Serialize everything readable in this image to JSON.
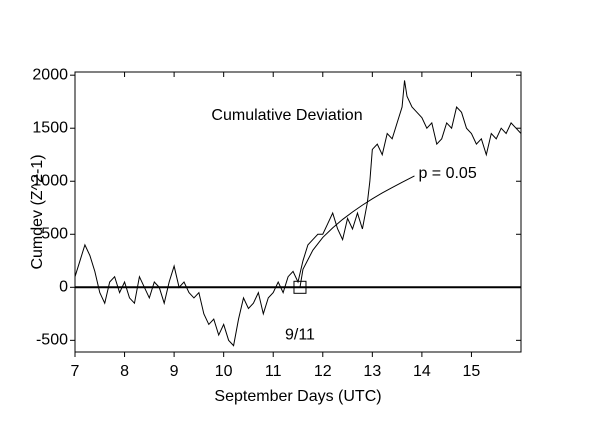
{
  "chart_data": {
    "type": "line",
    "title": "Cumulative Deviation",
    "x_label": "September Days (UTC)",
    "y_label": "Cumdev (Z^2-1)",
    "color": "#000000",
    "x": [
      7.0,
      7.1,
      7.2,
      7.3,
      7.4,
      7.5,
      7.6,
      7.7,
      7.8,
      7.9,
      8.0,
      8.1,
      8.2,
      8.3,
      8.4,
      8.5,
      8.6,
      8.7,
      8.8,
      8.9,
      9.0,
      9.1,
      9.2,
      9.3,
      9.4,
      9.5,
      9.6,
      9.7,
      9.8,
      9.9,
      10.0,
      10.1,
      10.2,
      10.3,
      10.4,
      10.5,
      10.6,
      10.7,
      10.8,
      10.9,
      11.0,
      11.1,
      11.2,
      11.3,
      11.4,
      11.5,
      11.6,
      11.7,
      11.8,
      11.9,
      12.0,
      12.1,
      12.2,
      12.3,
      12.4,
      12.5,
      12.6,
      12.7,
      12.8,
      12.9,
      12.95,
      13.0,
      13.1,
      13.2,
      13.3,
      13.4,
      13.5,
      13.6,
      13.65,
      13.7,
      13.8,
      13.9,
      14.0,
      14.1,
      14.2,
      14.3,
      14.4,
      14.5,
      14.6,
      14.7,
      14.8,
      14.9,
      15.0,
      15.1,
      15.2,
      15.3,
      15.4,
      15.5,
      15.6,
      15.7,
      15.8,
      15.9,
      16.0
    ],
    "values": [
      100,
      250,
      400,
      300,
      150,
      -50,
      -150,
      50,
      100,
      -50,
      50,
      -100,
      -150,
      100,
      0,
      -100,
      50,
      0,
      -150,
      50,
      200,
      0,
      50,
      -50,
      -100,
      -50,
      -250,
      -350,
      -300,
      -450,
      -350,
      -500,
      -550,
      -300,
      -100,
      -200,
      -150,
      -50,
      -250,
      -100,
      -50,
      50,
      -50,
      100,
      150,
      50,
      250,
      400,
      450,
      500,
      500,
      600,
      700,
      550,
      450,
      650,
      550,
      700,
      550,
      800,
      1000,
      1300,
      1350,
      1250,
      1450,
      1400,
      1550,
      1700,
      1950,
      1800,
      1700,
      1650,
      1600,
      1500,
      1550,
      1350,
      1400,
      1550,
      1500,
      1700,
      1650,
      1500,
      1450,
      1350,
      1400,
      1250,
      1450,
      1400,
      1500,
      1450,
      1550,
      1500,
      1450
    ],
    "threshold": {
      "label": "p = 0.05",
      "x": [
        11.54,
        11.6,
        11.8,
        12.0,
        12.2,
        12.4,
        12.6,
        12.8,
        13.0,
        13.2,
        13.4,
        13.6,
        13.85
      ],
      "values": [
        0,
        170,
        350,
        470,
        560,
        640,
        710,
        775,
        834,
        890,
        940,
        990,
        1050
      ]
    },
    "reference_line": 0,
    "annotations": [
      {
        "text": "9/11",
        "x": 11.54,
        "y": 0
      }
    ],
    "xlim": [
      7,
      16
    ],
    "ylim": [
      -610,
      2030
    ],
    "xticks": [
      7,
      8,
      9,
      10,
      11,
      12,
      13,
      14,
      15
    ],
    "yticks": [
      -500,
      0,
      500,
      1000,
      1500,
      2000
    ]
  }
}
